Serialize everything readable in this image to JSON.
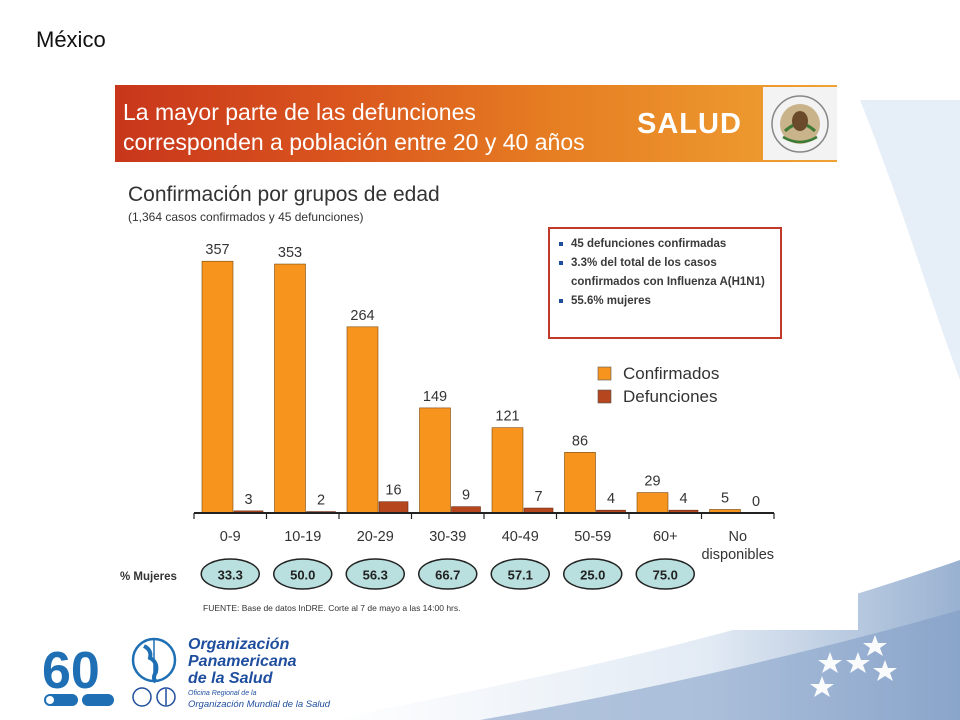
{
  "country": "México",
  "banner": {
    "title": "La mayor parte de las defunciones\ncorresponden a población entre 20 y 40 años",
    "salud": "SALUD"
  },
  "chart_data": {
    "type": "bar",
    "title": "Confirmación por grupos de edad",
    "subtitle": "(1,364 casos confirmados y 45 defunciones)",
    "categories": [
      "0-9",
      "10-19",
      "20-29",
      "30-39",
      "40-49",
      "50-59",
      "60+",
      "No\ndisponibles"
    ],
    "series": [
      {
        "name": "Confirmados",
        "color": "#f7941d",
        "values": [
          357,
          353,
          264,
          149,
          121,
          86,
          29,
          5
        ]
      },
      {
        "name": "Defunciones",
        "color": "#b5461d",
        "values": [
          3,
          2,
          16,
          9,
          7,
          4,
          4,
          0
        ]
      }
    ],
    "ylim": [
      0,
      380
    ],
    "grid": false,
    "legend": "right",
    "mujeres_label": "% Mujeres",
    "mujeres": [
      "33.3",
      "50.0",
      "56.3",
      "66.7",
      "57.1",
      "25.0",
      "75.0"
    ],
    "notes": [
      "45 defunciones confirmadas",
      "3.3% del total de los  casos confirmados con Influenza A(H1N1)",
      "55.6% mujeres"
    ],
    "source": "FUENTE: Base de datos InDRE. Corte al 7 de mayo a las 14:00 hrs."
  },
  "footer": {
    "org_line1": "Organización",
    "org_line2": "Panamericana",
    "org_line3": "de la Salud",
    "regional_office": "Oficina Regional de la",
    "who_name": "Organización Mundial de la Salud",
    "anniversary": "60"
  }
}
